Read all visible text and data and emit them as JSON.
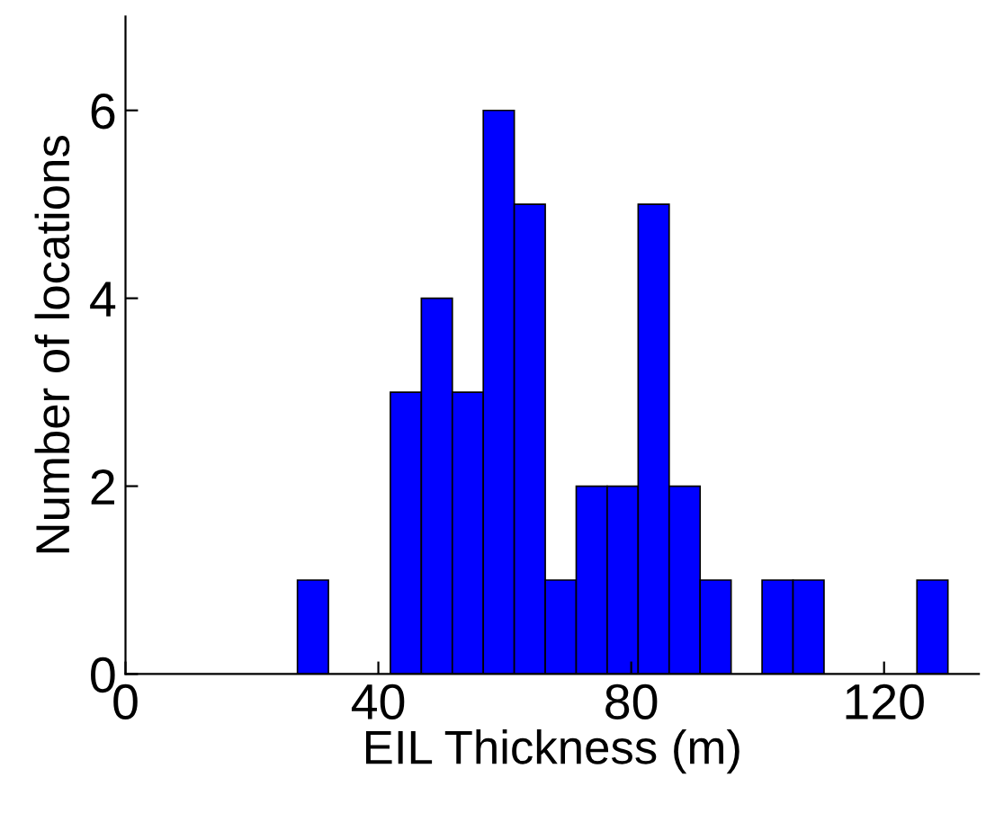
{
  "chart_data": {
    "type": "histogram",
    "xlabel": "EIL Thickness (m)",
    "ylabel": "Number of locations",
    "bins": [
      27.2,
      32.1,
      37.0,
      41.9,
      46.8,
      51.7,
      56.6,
      61.5,
      66.4,
      71.3,
      76.2,
      81.1,
      86.0,
      90.9,
      95.8,
      100.7,
      105.6,
      110.5,
      115.4,
      120.3,
      125.2,
      130.1
    ],
    "values": [
      1,
      0,
      0,
      3,
      4,
      3,
      6,
      5,
      1,
      2,
      2,
      5,
      2,
      1,
      0,
      1,
      1,
      0,
      0,
      0,
      1
    ],
    "color": "#0000ff",
    "xlim": [
      0,
      135
    ],
    "xticks": [
      0,
      40,
      80,
      120
    ],
    "ylim": [
      0,
      7
    ],
    "yticks": [
      0,
      2,
      4,
      6
    ],
    "grid": false
  }
}
